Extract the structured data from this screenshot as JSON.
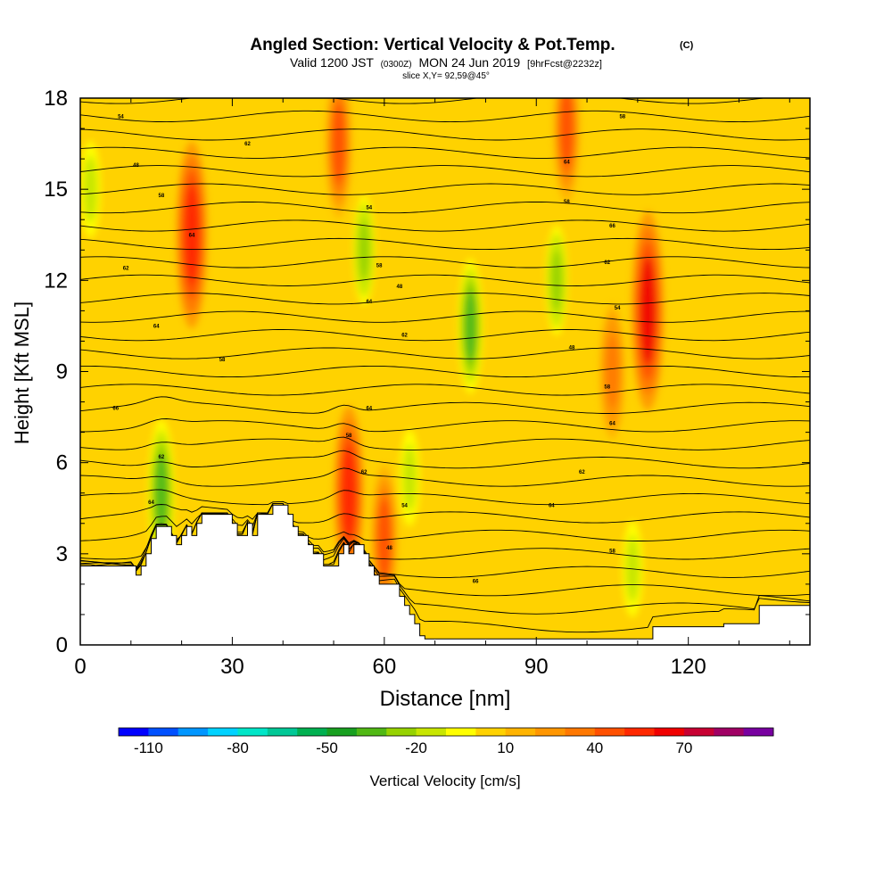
{
  "chart_data": {
    "type": "heatmap",
    "title": {
      "main": "Angled Section: Vertical Velocity & Pot.Temp.",
      "copyright": "(C)",
      "valid_prefix": "Valid 1200 JST",
      "valid_utc": "(0300Z)",
      "valid_date": "MON 24 Jun 2019",
      "forecast": "[9hrFcst@2232z]",
      "slice": "slice X,Y= 92,59@45°"
    },
    "xlabel": "Distance [nm]",
    "ylabel": "Height [Kft MSL]",
    "xlim": [
      0,
      144
    ],
    "ylim": [
      0,
      18
    ],
    "x_ticks": [
      "0",
      "30",
      "60",
      "90",
      "120"
    ],
    "x_tick_values": [
      0,
      30,
      60,
      90,
      120
    ],
    "y_ticks": [
      "0",
      "3",
      "6",
      "9",
      "12",
      "15",
      "18"
    ],
    "y_tick_values": [
      0,
      3,
      6,
      9,
      12,
      15,
      18
    ],
    "colorbar": {
      "label": "Vertical Velocity [cm/s]",
      "tick_labels": [
        "-110",
        "-80",
        "-50",
        "-20",
        "10",
        "40",
        "70"
      ],
      "tick_values": [
        -110,
        -80,
        -50,
        -20,
        10,
        40,
        70
      ],
      "min": -120,
      "step": 10,
      "colors": [
        "#0000ff",
        "#0050ff",
        "#0096ff",
        "#00d2ff",
        "#00e6c8",
        "#00c896",
        "#00b050",
        "#18a020",
        "#50b814",
        "#96d200",
        "#c8e600",
        "#ffff00",
        "#ffd200",
        "#ffb400",
        "#ff9600",
        "#ff7800",
        "#ff5000",
        "#ff2800",
        "#f00000",
        "#c80032",
        "#a00064",
        "#7800a0"
      ]
    },
    "background_class": "#ffd200",
    "updraft_cores": [
      {
        "x": 22,
        "y": 13.5,
        "w": 55
      },
      {
        "x": 112,
        "y": 11,
        "w": 60
      },
      {
        "x": 53,
        "y": 5,
        "w": 50
      },
      {
        "x": 60,
        "y": 3.5,
        "w": 40
      },
      {
        "x": 51,
        "y": 16.5,
        "w": 40
      },
      {
        "x": 96,
        "y": 17,
        "w": 40
      },
      {
        "x": 105,
        "y": 9,
        "w": 35
      }
    ],
    "downdraft_cores": [
      {
        "x": 16,
        "y": 5,
        "w": -40
      },
      {
        "x": 77,
        "y": 10.5,
        "w": -35
      },
      {
        "x": 56,
        "y": 13,
        "w": -25
      },
      {
        "x": 94,
        "y": 12,
        "w": -25
      },
      {
        "x": 109,
        "y": 2.5,
        "w": -20
      },
      {
        "x": 2,
        "y": 15,
        "w": -20
      },
      {
        "x": 65,
        "y": 5.5,
        "w": -20
      }
    ],
    "terrain_profile": {
      "x": [
        0,
        10,
        11,
        12,
        13,
        14,
        15,
        18,
        19,
        20,
        21,
        22,
        23,
        24,
        25,
        29,
        30,
        31,
        33,
        34,
        35,
        38,
        41,
        42,
        43,
        45,
        46,
        48,
        51,
        52,
        53,
        54,
        56,
        57,
        58,
        59,
        63,
        64,
        65,
        66,
        67,
        68,
        75,
        95,
        113,
        127,
        134,
        144
      ],
      "y": [
        2.6,
        2.6,
        2.3,
        2.6,
        3.0,
        3.5,
        3.9,
        3.6,
        3.3,
        3.6,
        3.9,
        3.6,
        4.0,
        4.3,
        4.3,
        4.3,
        4.0,
        3.6,
        4.0,
        3.6,
        4.3,
        4.6,
        4.3,
        3.9,
        3.6,
        3.3,
        3.0,
        2.6,
        3.0,
        3.3,
        3.0,
        3.3,
        3.0,
        2.6,
        2.3,
        2.0,
        1.6,
        1.3,
        1.0,
        0.7,
        0.3,
        0.2,
        0.2,
        0.2,
        0.6,
        0.7,
        1.3,
        1.3
      ]
    },
    "isentropes": {
      "count": 30,
      "label_sample": [
        "54",
        "48",
        "58",
        "64",
        "62",
        "64",
        "58",
        "66",
        "62"
      ]
    }
  }
}
